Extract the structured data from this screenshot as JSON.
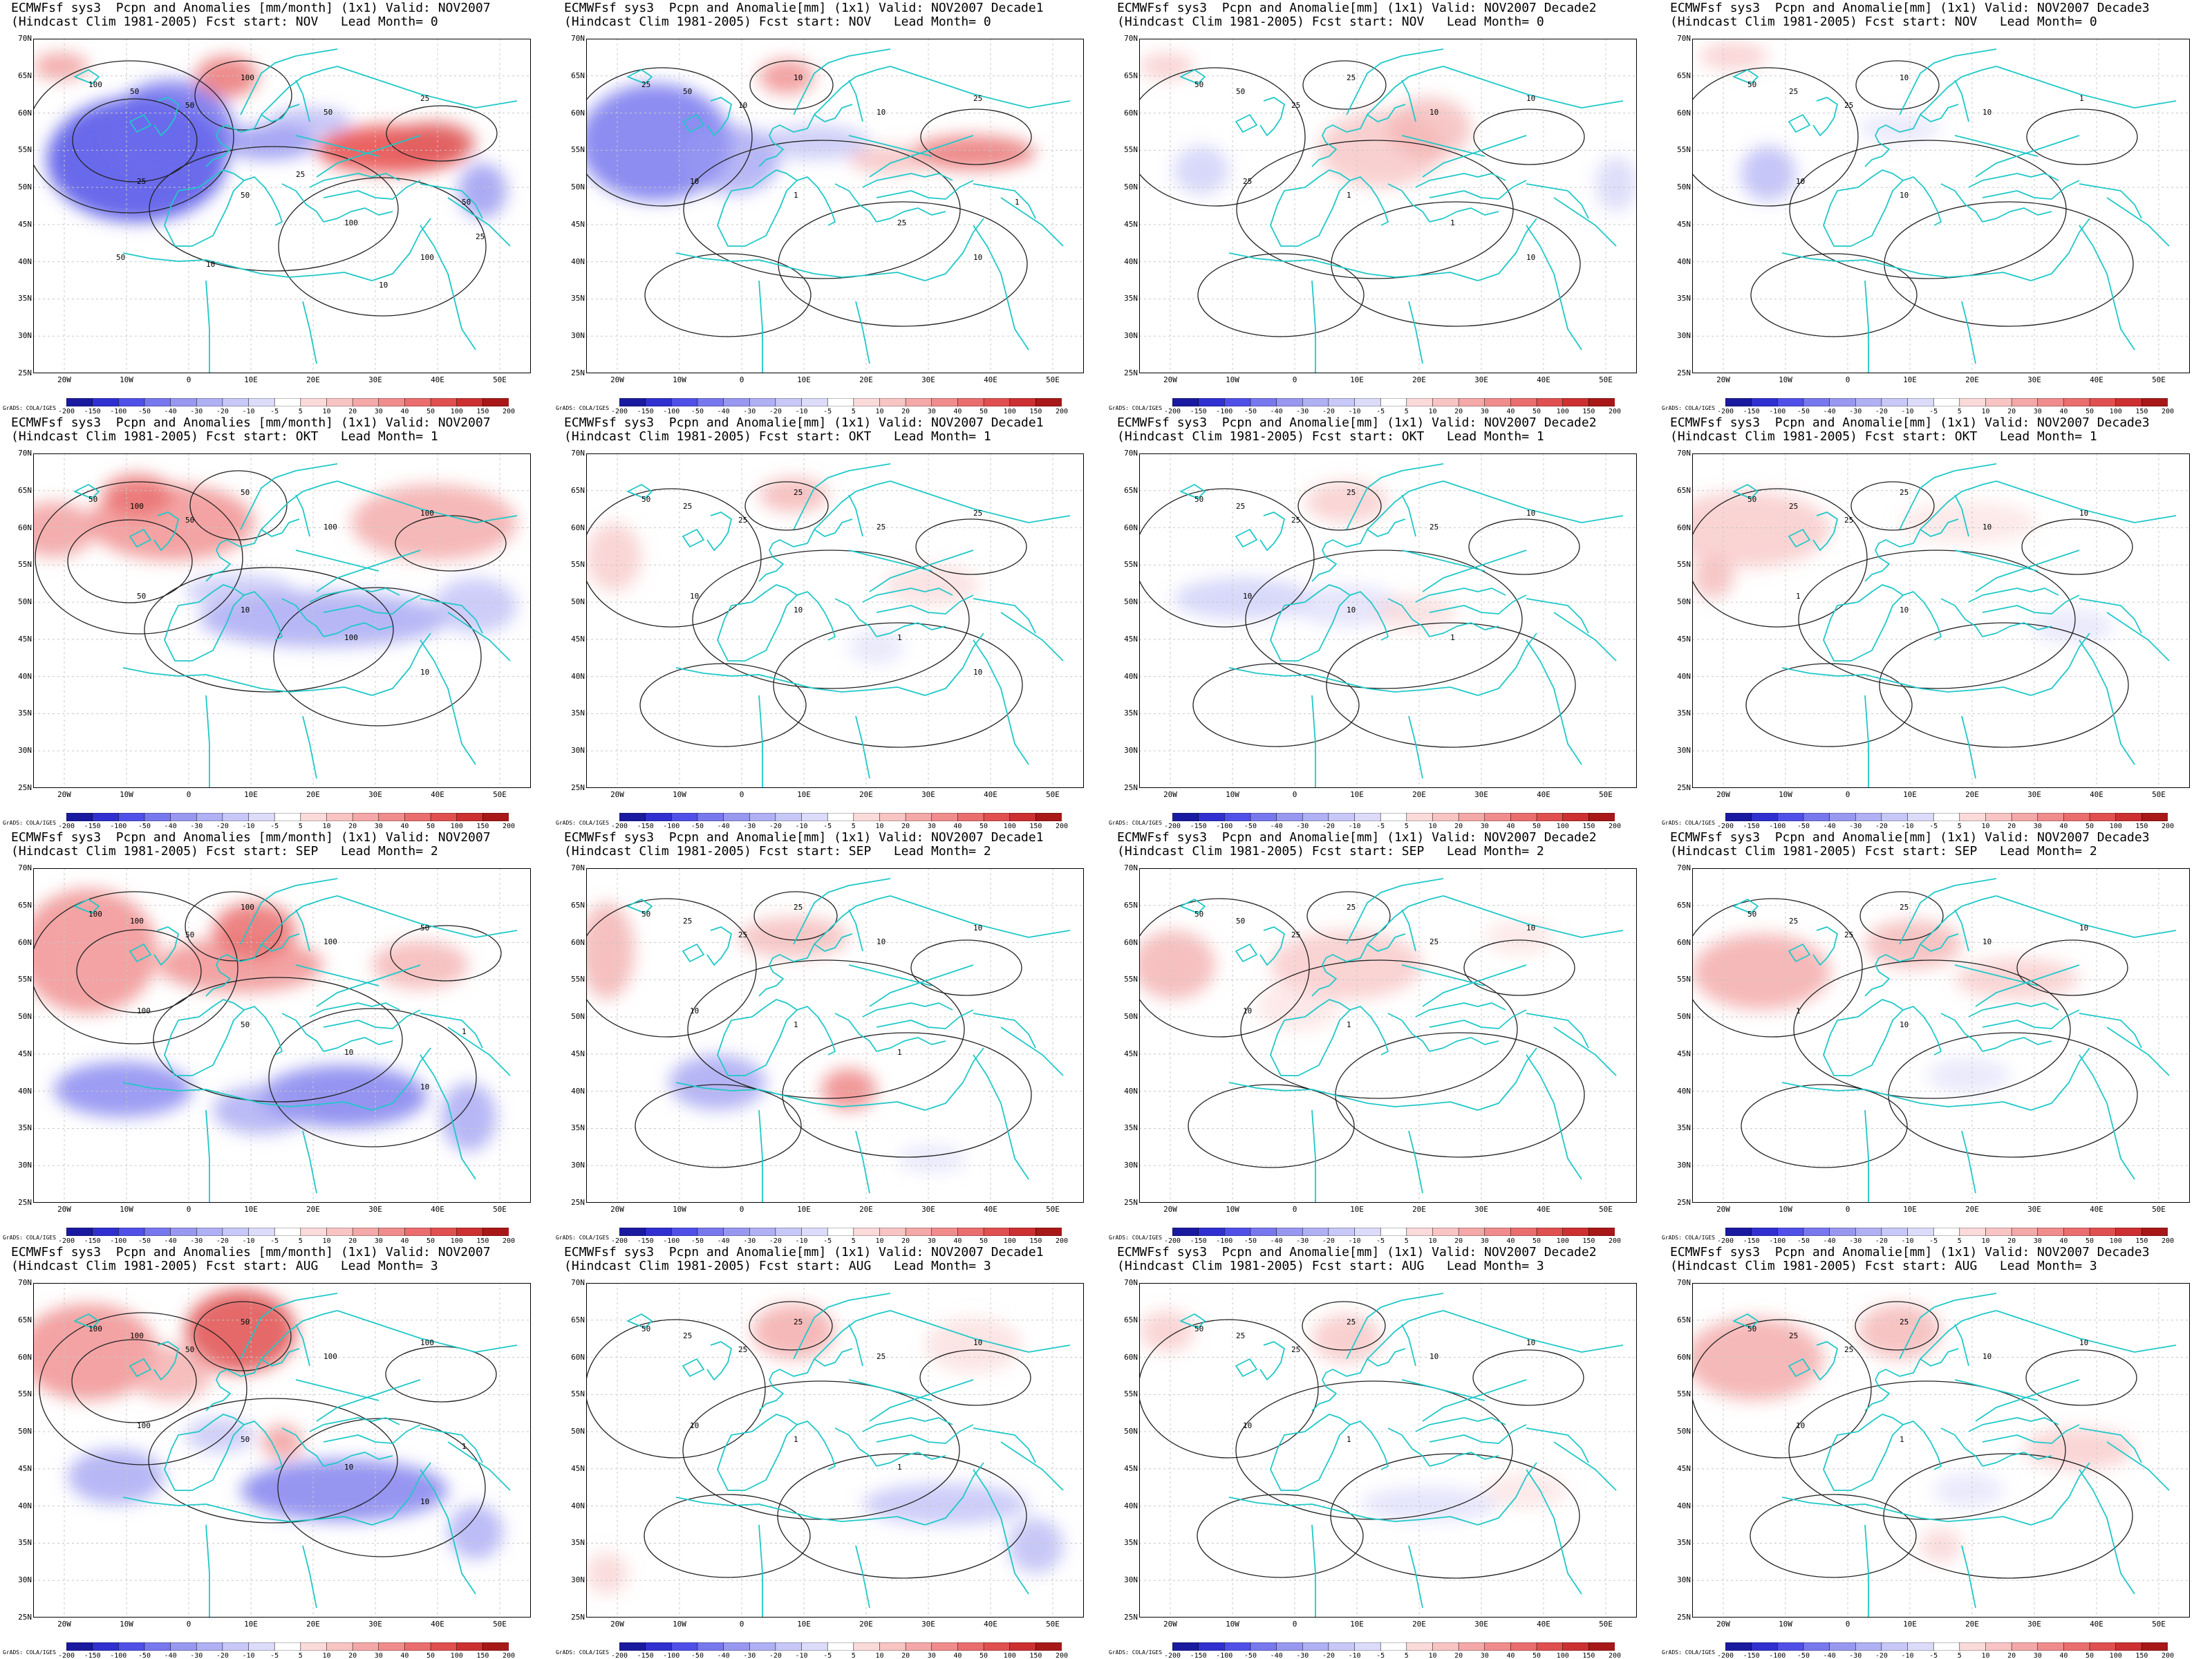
{
  "rows": [
    {
      "row_id": "lead0",
      "panels": [
        {
          "title_line1": "ECMWFsf sys3  Pcpn and Anomalies [mm/month] (1x1) Valid: NOV2007",
          "title_line2": "(Hindcast Clim 1981-2005) Fcst start: NOV   Lead Month= 0",
          "contour_labels": [
            "100",
            "50",
            "50",
            "100",
            "50",
            "25",
            "25",
            "50",
            "100",
            "100",
            "50",
            "25",
            "10",
            "10",
            "25",
            "50"
          ]
        },
        {
          "title_line1": "ECMWFsf sys3  Pcpn and Anomalie[mm] (1x1) Valid: NOV2007 Decade1",
          "title_line2": "(Hindcast Clim 1981-2005) Fcst start: NOV   Lead Month= 0",
          "contour_labels": [
            "25",
            "50",
            "10",
            "10",
            "10",
            "25",
            "10",
            "1",
            "25",
            "10",
            "1"
          ]
        },
        {
          "title_line1": "ECMWFsf sys3  Pcpn and Anomalie[mm] (1x1) Valid: NOV2007 Decade2",
          "title_line2": "(Hindcast Clim 1981-2005) Fcst start: NOV   Lead Month= 0",
          "contour_labels": [
            "50",
            "50",
            "25",
            "25",
            "10",
            "10",
            "25",
            "1",
            "1",
            "10"
          ]
        },
        {
          "title_line1": "ECMWFsf sys3  Pcpn and Anomalie[mm] (1x1) Valid: NOV2007 Decade3",
          "title_line2": "(Hindcast Clim 1981-2005) Fcst start: NOV   Lead Month= 0",
          "contour_labels": [
            "50",
            "25",
            "25",
            "10",
            "10",
            "1",
            "10",
            "10"
          ]
        }
      ]
    },
    {
      "row_id": "lead1",
      "panels": [
        {
          "title_line1": "ECMWFsf sys3  Pcpn and Anomalies [mm/month] (1x1) Valid: NOV2007",
          "title_line2": "(Hindcast Clim 1981-2005) Fcst start: OKT   Lead Month= 1",
          "contour_labels": [
            "50",
            "100",
            "50",
            "50",
            "100",
            "100",
            "50",
            "10",
            "100",
            "10"
          ]
        },
        {
          "title_line1": "ECMWFsf sys3  Pcpn and Anomalie[mm] (1x1) Valid: NOV2007 Decade1",
          "title_line2": "(Hindcast Clim 1981-2005) Fcst start: OKT   Lead Month= 1",
          "contour_labels": [
            "50",
            "25",
            "25",
            "25",
            "25",
            "25",
            "10",
            "10",
            "1",
            "10"
          ]
        },
        {
          "title_line1": "ECMWFsf sys3  Pcpn and Anomalie[mm] (1x1) Valid: NOV2007 Decade2",
          "title_line2": "(Hindcast Clim 1981-2005) Fcst start: OKT   Lead Month= 1",
          "contour_labels": [
            "50",
            "25",
            "25",
            "25",
            "25",
            "10",
            "10",
            "10",
            "1"
          ]
        },
        {
          "title_line1": "ECMWFsf sys3  Pcpn and Anomalie[mm] (1x1) Valid: NOV2007 Decade3",
          "title_line2": "(Hindcast Clim 1981-2005) Fcst start: OKT   Lead Month= 1",
          "contour_labels": [
            "50",
            "25",
            "25",
            "25",
            "10",
            "10",
            "1",
            "10"
          ]
        }
      ]
    },
    {
      "row_id": "lead2",
      "panels": [
        {
          "title_line1": "ECMWFsf sys3  Pcpn and Anomalies [mm/month] (1x1) Valid: NOV2007",
          "title_line2": "(Hindcast Clim 1981-2005) Fcst start: SEP   Lead Month= 2",
          "contour_labels": [
            "100",
            "100",
            "50",
            "100",
            "100",
            "50",
            "100",
            "50",
            "10",
            "10",
            "1"
          ]
        },
        {
          "title_line1": "ECMWFsf sys3  Pcpn and Anomalie[mm] (1x1) Valid: NOV2007 Decade1",
          "title_line2": "(Hindcast Clim 1981-2005) Fcst start: SEP   Lead Month= 2",
          "contour_labels": [
            "50",
            "25",
            "25",
            "25",
            "10",
            "10",
            "10",
            "1",
            "1"
          ]
        },
        {
          "title_line1": "ECMWFsf sys3  Pcpn and Anomalie[mm] (1x1) Valid: NOV2007 Decade2",
          "title_line2": "(Hindcast Clim 1981-2005) Fcst start: SEP   Lead Month= 2",
          "contour_labels": [
            "50",
            "50",
            "25",
            "25",
            "25",
            "10",
            "10",
            "1"
          ]
        },
        {
          "title_line1": "ECMWFsf sys3  Pcpn and Anomalie[mm] (1x1) Valid: NOV2007 Decade3",
          "title_line2": "(Hindcast Clim 1981-2005) Fcst start: SEP   Lead Month= 2",
          "contour_labels": [
            "50",
            "25",
            "25",
            "25",
            "10",
            "10",
            "1",
            "10"
          ]
        }
      ]
    },
    {
      "row_id": "lead3",
      "panels": [
        {
          "title_line1": "ECMWFsf sys3  Pcpn and Anomalies [mm/month] (1x1) Valid: NOV2007",
          "title_line2": "(Hindcast Clim 1981-2005) Fcst start: AUG   Lead Month= 3",
          "contour_labels": [
            "100",
            "100",
            "50",
            "50",
            "100",
            "100",
            "100",
            "50",
            "10",
            "10",
            "1"
          ]
        },
        {
          "title_line1": "ECMWFsf sys3  Pcpn and Anomalie[mm] (1x1) Valid: NOV2007 Decade1",
          "title_line2": "(Hindcast Clim 1981-2005) Fcst start: AUG   Lead Month= 3",
          "contour_labels": [
            "50",
            "25",
            "25",
            "25",
            "25",
            "10",
            "10",
            "1",
            "1"
          ]
        },
        {
          "title_line1": "ECMWFsf sys3  Pcpn and Anomalie[mm] (1x1) Valid: NOV2007 Decade2",
          "title_line2": "(Hindcast Clim 1981-2005) Fcst start: AUG   Lead Month= 3",
          "contour_labels": [
            "50",
            "25",
            "25",
            "25",
            "10",
            "10",
            "10",
            "1"
          ]
        },
        {
          "title_line1": "ECMWFsf sys3  Pcpn and Anomalie[mm] (1x1) Valid: NOV2007 Decade3",
          "title_line2": "(Hindcast Clim 1981-2005) Fcst start: AUG   Lead Month= 3",
          "contour_labels": [
            "50",
            "25",
            "25",
            "25",
            "10",
            "10",
            "10",
            "1"
          ]
        }
      ]
    }
  ],
  "axes": {
    "lat_labels": [
      "70N",
      "65N",
      "60N",
      "55N",
      "50N",
      "45N",
      "40N",
      "35N",
      "30N",
      "25N"
    ],
    "lon_labels": [
      "20W",
      "10W",
      "0",
      "10E",
      "20E",
      "30E",
      "40E",
      "50E"
    ],
    "lon_range": [
      -25,
      55
    ],
    "lat_range": [
      25,
      70
    ]
  },
  "colorbar": {
    "ticks": [
      "-200",
      "-150",
      "-100",
      "-50",
      "-40",
      "-30",
      "-20",
      "-10",
      "-5",
      "5",
      "10",
      "20",
      "30",
      "40",
      "50",
      "100",
      "150",
      "200"
    ],
    "colors": [
      "#1a1aa0",
      "#3030d0",
      "#5050e8",
      "#7878ee",
      "#9898f0",
      "#b0b0f4",
      "#c8c8f8",
      "#dcdcfa",
      "#ffffff",
      "#fbdada",
      "#f8c4c4",
      "#f4a8a8",
      "#f08c8c",
      "#ea6e6e",
      "#e05050",
      "#cc3030",
      "#a81818"
    ]
  },
  "credit": "GrADS: COLA/IGES",
  "colors": {
    "coast": "#20c8c8",
    "contour": "#222222",
    "grid": "#c8c8c8"
  }
}
